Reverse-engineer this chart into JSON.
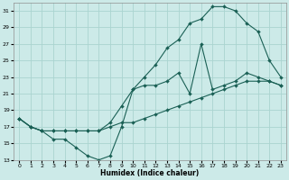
{
  "xlabel": "Humidex (Indice chaleur)",
  "background_color": "#cceae8",
  "grid_color": "#aad4d0",
  "line_color": "#1a6055",
  "xlim": [
    -0.5,
    23.5
  ],
  "ylim": [
    13,
    32
  ],
  "yticks": [
    13,
    15,
    17,
    19,
    21,
    23,
    25,
    27,
    29,
    31
  ],
  "xticks": [
    0,
    1,
    2,
    3,
    4,
    5,
    6,
    7,
    8,
    9,
    10,
    11,
    12,
    13,
    14,
    15,
    16,
    17,
    18,
    19,
    20,
    21,
    22,
    23
  ],
  "line_straight_x": [
    0,
    1,
    2,
    3,
    4,
    5,
    6,
    7,
    8,
    9,
    10,
    11,
    12,
    13,
    14,
    15,
    16,
    17,
    18,
    19,
    20,
    21,
    22,
    23
  ],
  "line_straight_y": [
    18.0,
    17.0,
    16.5,
    16.5,
    16.5,
    16.5,
    16.5,
    16.5,
    17.0,
    17.5,
    17.5,
    18.0,
    18.5,
    19.0,
    19.5,
    20.0,
    20.5,
    21.0,
    21.5,
    22.0,
    22.5,
    22.5,
    22.5,
    22.0
  ],
  "line_peak_x": [
    0,
    1,
    2,
    3,
    4,
    5,
    6,
    7,
    8,
    9,
    10,
    11,
    12,
    13,
    14,
    15,
    16,
    17,
    18,
    19,
    20,
    21,
    22,
    23
  ],
  "line_peak_y": [
    18.0,
    17.0,
    16.5,
    16.5,
    16.5,
    16.5,
    16.5,
    16.5,
    17.5,
    19.5,
    21.5,
    23.0,
    24.5,
    26.5,
    27.5,
    29.5,
    30.0,
    31.5,
    31.5,
    31.0,
    29.5,
    28.5,
    25.0,
    23.0
  ],
  "line_dip_x": [
    0,
    1,
    2,
    3,
    4,
    5,
    6,
    7,
    8,
    9,
    10,
    11,
    12,
    13,
    14,
    15,
    16,
    17,
    18,
    19,
    20,
    21,
    22,
    23
  ],
  "line_dip_y": [
    18.0,
    17.0,
    16.5,
    15.5,
    15.5,
    14.5,
    13.5,
    13.0,
    13.5,
    17.0,
    21.5,
    22.0,
    22.0,
    22.5,
    23.5,
    21.0,
    27.0,
    21.5,
    22.0,
    22.5,
    23.5,
    23.0,
    22.5,
    22.0
  ]
}
